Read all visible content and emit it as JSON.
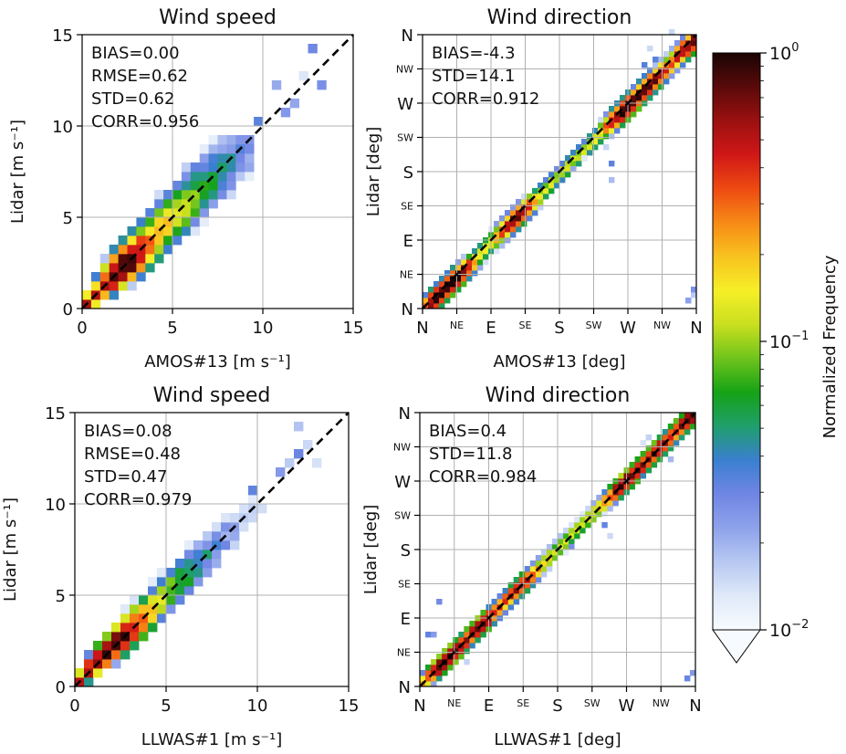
{
  "figure": {
    "colormap": [
      "#f7fbff",
      "#dfe9f8",
      "#b7c8f2",
      "#8ea2ea",
      "#6f86e3",
      "#3a7fd0",
      "#1f9f6c",
      "#16a216",
      "#6fc41c",
      "#c9df1f",
      "#f6ef27",
      "#f8c21f",
      "#f78a16",
      "#ee4a12",
      "#d01717",
      "#9c1010",
      "#5a0a0a",
      "#1a0404"
    ],
    "colorbar": {
      "label": "Normalized Frequency",
      "scale": "log",
      "range": [
        0.01,
        1
      ],
      "ticks": [
        {
          "value": 1,
          "base": "10",
          "exp": "0"
        },
        {
          "value": 0.1,
          "base": "10",
          "exp": "−1"
        },
        {
          "value": 0.01,
          "base": "10",
          "exp": "−2"
        }
      ]
    }
  },
  "chart_data": [
    {
      "id": "speed-amos",
      "type": "heatmap",
      "title": "Wind speed",
      "xlabel": "AMOS#13 [m s⁻¹]",
      "ylabel": "Lidar [m s⁻¹]",
      "xlim": [
        0,
        15
      ],
      "ylim": [
        0,
        15
      ],
      "xticks": [
        {
          "v": 0,
          "l": "0",
          "size": "big"
        },
        {
          "v": 5,
          "l": "5",
          "size": "big"
        },
        {
          "v": 10,
          "l": "10",
          "size": "big"
        },
        {
          "v": 15,
          "l": "15",
          "size": "big"
        }
      ],
      "yticks": [
        {
          "v": 0,
          "l": "0",
          "size": "big"
        },
        {
          "v": 5,
          "l": "5",
          "size": "big"
        },
        {
          "v": 10,
          "l": "10",
          "size": "big"
        },
        {
          "v": 15,
          "l": "15",
          "size": "big"
        }
      ],
      "stats": [
        "BIAS=0.00",
        "RMSE=0.62",
        "STD=0.62",
        "CORR=0.956"
      ],
      "reference_line": "y = x",
      "bin_size": 0.5,
      "density": {
        "peak": 2.3,
        "core_sigma": 0.9,
        "spread_sigma": 0.28,
        "spread_growth": 0.12,
        "along_decay": 2.4,
        "bias": 0.0,
        "min_frequency": 0.012,
        "cutoff": 9.5,
        "outer": [
          [
            11,
            10.5
          ],
          [
            11.5,
            11
          ],
          [
            12,
            12.5
          ],
          [
            13,
            12
          ],
          [
            10.5,
            12
          ],
          [
            9.5,
            10
          ],
          [
            12.5,
            14
          ],
          [
            9,
            8.5
          ]
        ]
      }
    },
    {
      "id": "dir-amos",
      "type": "heatmap",
      "title": "Wind direction",
      "xlabel": "AMOS#13 [deg]",
      "ylabel": "Lidar [deg]",
      "xlim": [
        0,
        360
      ],
      "ylim": [
        0,
        360
      ],
      "xticks": [
        {
          "v": 0,
          "l": "N",
          "size": "big"
        },
        {
          "v": 45,
          "l": "NE",
          "size": "small"
        },
        {
          "v": 90,
          "l": "E",
          "size": "big"
        },
        {
          "v": 135,
          "l": "SE",
          "size": "small"
        },
        {
          "v": 180,
          "l": "S",
          "size": "big"
        },
        {
          "v": 225,
          "l": "SW",
          "size": "small"
        },
        {
          "v": 270,
          "l": "W",
          "size": "big"
        },
        {
          "v": 315,
          "l": "NW",
          "size": "small"
        },
        {
          "v": 360,
          "l": "N",
          "size": "big"
        }
      ],
      "yticks": [
        {
          "v": 0,
          "l": "N",
          "size": "big"
        },
        {
          "v": 45,
          "l": "NE",
          "size": "small"
        },
        {
          "v": 90,
          "l": "E",
          "size": "big"
        },
        {
          "v": 135,
          "l": "SE",
          "size": "small"
        },
        {
          "v": 180,
          "l": "S",
          "size": "big"
        },
        {
          "v": 225,
          "l": "SW",
          "size": "small"
        },
        {
          "v": 270,
          "l": "W",
          "size": "big"
        },
        {
          "v": 315,
          "l": "NW",
          "size": "small"
        },
        {
          "v": 360,
          "l": "N",
          "size": "big"
        }
      ],
      "stats": [
        "BIAS=-4.3",
        "STD=14.1",
        "CORR=0.912"
      ],
      "reference_line": "y = x",
      "bin_size": 7.2,
      "density": {
        "hotspots": [
          [
            22,
            0.8
          ],
          [
            40,
            0.8
          ],
          [
            120,
            0.6
          ],
          [
            265,
            0.9
          ],
          [
            300,
            0.6
          ],
          [
            350,
            0.7
          ]
        ],
        "base_weight": 0.12,
        "spread_sigma": 7.5,
        "bias": -4.3,
        "min_frequency": 0.012,
        "outer": [
          [
            355,
            15
          ],
          [
            355,
            22
          ],
          [
            350,
            10
          ],
          [
            348,
            8
          ],
          [
            240,
            215
          ],
          [
            245,
            190
          ],
          [
            250,
            170
          ],
          [
            290,
            320
          ],
          [
            300,
            345
          ],
          [
            305,
            330
          ],
          [
            200,
            185
          ],
          [
            210,
            200
          ],
          [
            325,
            360
          ]
        ]
      }
    },
    {
      "id": "speed-llwas",
      "type": "heatmap",
      "title": "Wind speed",
      "xlabel": "LLWAS#1 [m s⁻¹]",
      "ylabel": "Lidar [m s⁻¹]",
      "xlim": [
        0,
        15
      ],
      "ylim": [
        0,
        15
      ],
      "xticks": [
        {
          "v": 0,
          "l": "0",
          "size": "big"
        },
        {
          "v": 5,
          "l": "5",
          "size": "big"
        },
        {
          "v": 10,
          "l": "10",
          "size": "big"
        },
        {
          "v": 15,
          "l": "15",
          "size": "big"
        }
      ],
      "yticks": [
        {
          "v": 0,
          "l": "0",
          "size": "big"
        },
        {
          "v": 5,
          "l": "5",
          "size": "big"
        },
        {
          "v": 10,
          "l": "10",
          "size": "big"
        },
        {
          "v": 15,
          "l": "15",
          "size": "big"
        }
      ],
      "stats": [
        "BIAS=0.08",
        "RMSE=0.48",
        "STD=0.47",
        "CORR=0.979"
      ],
      "reference_line": "y = x",
      "bin_size": 0.5,
      "density": {
        "peak": 2.0,
        "core_sigma": 1.2,
        "spread_sigma": 0.25,
        "spread_growth": 0.08,
        "along_decay": 2.2,
        "bias": 0.08,
        "min_frequency": 0.012,
        "cutoff": 12.5,
        "outer": [
          [
            11.5,
            12
          ],
          [
            12,
            12.5
          ],
          [
            12,
            14
          ],
          [
            12.5,
            13
          ],
          [
            11,
            11.5
          ],
          [
            10,
            9.5
          ],
          [
            13,
            12
          ],
          [
            9.5,
            10.5
          ]
        ]
      }
    },
    {
      "id": "dir-llwas",
      "type": "heatmap",
      "title": "Wind direction",
      "xlabel": "LLWAS#1 [deg]",
      "ylabel": "Lidar [deg]",
      "xlim": [
        0,
        360
      ],
      "ylim": [
        0,
        360
      ],
      "xticks": [
        {
          "v": 0,
          "l": "N",
          "size": "big"
        },
        {
          "v": 45,
          "l": "NE",
          "size": "small"
        },
        {
          "v": 90,
          "l": "E",
          "size": "big"
        },
        {
          "v": 135,
          "l": "SE",
          "size": "small"
        },
        {
          "v": 180,
          "l": "S",
          "size": "big"
        },
        {
          "v": 225,
          "l": "SW",
          "size": "small"
        },
        {
          "v": 270,
          "l": "W",
          "size": "big"
        },
        {
          "v": 315,
          "l": "NW",
          "size": "small"
        },
        {
          "v": 360,
          "l": "N",
          "size": "big"
        }
      ],
      "yticks": [
        {
          "v": 0,
          "l": "N",
          "size": "big"
        },
        {
          "v": 45,
          "l": "NE",
          "size": "small"
        },
        {
          "v": 90,
          "l": "E",
          "size": "big"
        },
        {
          "v": 135,
          "l": "SE",
          "size": "small"
        },
        {
          "v": 180,
          "l": "S",
          "size": "big"
        },
        {
          "v": 225,
          "l": "SW",
          "size": "small"
        },
        {
          "v": 270,
          "l": "W",
          "size": "big"
        },
        {
          "v": 315,
          "l": "NW",
          "size": "small"
        },
        {
          "v": 360,
          "l": "N",
          "size": "big"
        }
      ],
      "stats": [
        "BIAS=0.4",
        "STD=11.8",
        "CORR=0.984"
      ],
      "reference_line": "y = x",
      "bin_size": 7.2,
      "density": {
        "hotspots": [
          [
            35,
            1.0
          ],
          [
            80,
            0.7
          ],
          [
            130,
            0.5
          ],
          [
            270,
            0.8
          ],
          [
            310,
            0.6
          ],
          [
            355,
            0.8
          ]
        ],
        "base_weight": 0.15,
        "spread_sigma": 6.5,
        "bias": 0.4,
        "min_frequency": 0.012,
        "outer": [
          [
            355,
            15
          ],
          [
            350,
            8
          ],
          [
            10,
            65
          ],
          [
            15,
            70
          ],
          [
            25,
            110
          ],
          [
            240,
            215
          ],
          [
            245,
            200
          ],
          [
            290,
            320
          ],
          [
            300,
            330
          ],
          [
            330,
            300
          ],
          [
            200,
            185
          ],
          [
            60,
            30
          ]
        ]
      }
    }
  ]
}
